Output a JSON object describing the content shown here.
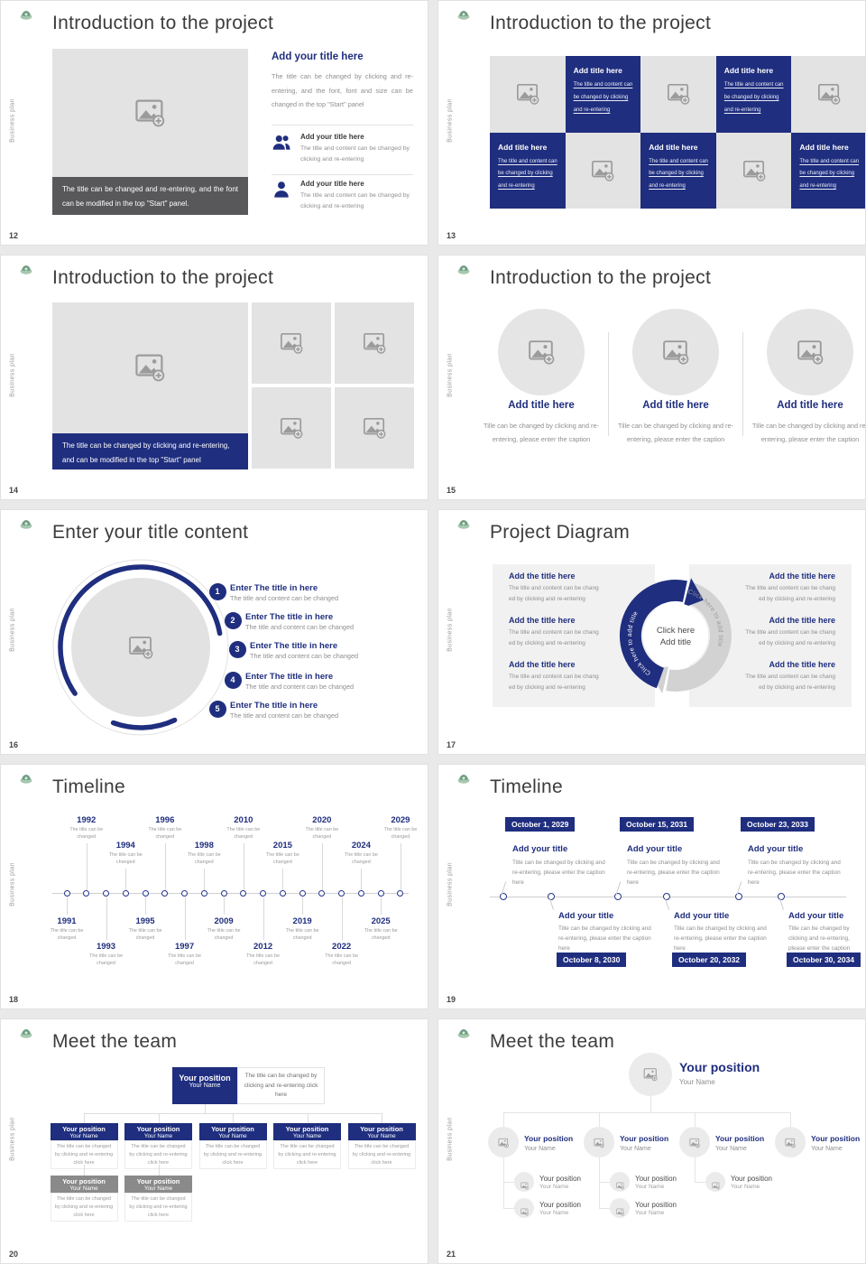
{
  "page": {
    "bg": "#e9e9e9"
  },
  "brand": {
    "sidebar_text": "Business plan",
    "accent": "#1f2e7e",
    "logo_icon": "green-ship-logo"
  },
  "slides": [
    {
      "number": "12",
      "title": "Introduction to the project",
      "type": "image_caption_list",
      "image_caption": "The title can be changed and re-entering, and the font can be modified in the top \"Start\" panel.",
      "heading": "Add your title here",
      "body": "The title can be changed by clicking and re-entering, and the font, font and size can be changed in the top \"Start\" panel",
      "items": [
        {
          "icon": "people-icon",
          "heading": "Add your title here",
          "text": "The title and content can be changed by clicking and re-entering"
        },
        {
          "icon": "person-icon",
          "heading": "Add your title here",
          "text": "The title and content can be changed by clicking and re-entering"
        }
      ]
    },
    {
      "number": "13",
      "title": "Introduction to the project",
      "type": "checkerboard",
      "tiles": [
        {
          "kind": "image"
        },
        {
          "kind": "text",
          "heading": "Add title here",
          "text": "The title and content can be changed by clicking and re-entering"
        },
        {
          "kind": "image"
        },
        {
          "kind": "text",
          "heading": "Add title here",
          "text": "The title and content can be changed by clicking and re-entering"
        },
        {
          "kind": "image"
        },
        {
          "kind": "text",
          "heading": "Add title here",
          "text": "The title and content can be changed by clicking and re-entering"
        },
        {
          "kind": "image"
        },
        {
          "kind": "text",
          "heading": "Add title here",
          "text": "The title and content can be changed by clicking and re-entering"
        },
        {
          "kind": "image"
        },
        {
          "kind": "text",
          "heading": "Add title here",
          "text": "The title and content can be changed by clicking and re-entering"
        }
      ]
    },
    {
      "number": "14",
      "title": "Introduction to the project",
      "type": "image_grid",
      "image_caption": "The title can be changed by clicking and re-entering, and can be modified in the top \"Start\" panel"
    },
    {
      "number": "15",
      "title": "Introduction to the project",
      "type": "three_circles",
      "items": [
        {
          "heading": "Add title here",
          "text": "Tille can be changed by clicking and re-entering, please enter the caption"
        },
        {
          "heading": "Add title here",
          "text": "Tille can be changed by clicking and re-entering, please enter the caption"
        },
        {
          "heading": "Add title here",
          "text": "Tille can be changed by clicking and re-entering, please enter the caption"
        }
      ]
    },
    {
      "number": "16",
      "title": "Enter your title content",
      "type": "numbered_list",
      "items": [
        {
          "num": "1",
          "heading": "Enter The title in here",
          "text": "The title and content can be changed"
        },
        {
          "num": "2",
          "heading": "Enter The title in here",
          "text": "The title and content can be changed"
        },
        {
          "num": "3",
          "heading": "Enter The title in here",
          "text": "The title and content can be changed"
        },
        {
          "num": "4",
          "heading": "Enter The title in here",
          "text": "The title and content can be changed"
        },
        {
          "num": "5",
          "heading": "Enter The title in here",
          "text": "The title and content can be changed"
        }
      ]
    },
    {
      "number": "17",
      "title": "Project Diagram",
      "type": "cycle_diagram",
      "center_line1": "Click here",
      "center_line2": "Add title",
      "arrow_label": "Click here to add title",
      "left_items": [
        {
          "heading": "Add the title here",
          "line1": "The title and content can be chang",
          "line2": "ed by clicking and re-entering"
        },
        {
          "heading": "Add the title here",
          "line1": "The title and content can be chang",
          "line2": "ed by clicking and re-entering"
        },
        {
          "heading": "Add the title here",
          "line1": "The title and content can be chang",
          "line2": "ed by clicking and re-entering"
        }
      ],
      "right_items": [
        {
          "heading": "Add the title here",
          "line1": "The title and content can be chang",
          "line2": "ed by clicking and re-entering"
        },
        {
          "heading": "Add the title here",
          "line1": "The title and content can be chang",
          "line2": "ed by clicking and re-entering"
        },
        {
          "heading": "Add the title here",
          "line1": "The title and content can be chang",
          "line2": "ed by clicking and re-entering"
        }
      ]
    },
    {
      "number": "18",
      "title": "Timeline",
      "type": "timeline_years",
      "caption": "The title can be changed",
      "years": [
        "1991",
        "1992",
        "1993",
        "1994",
        "1995",
        "1996",
        "1997",
        "1998",
        "2009",
        "2010",
        "2012",
        "2015",
        "2019",
        "2020",
        "2022",
        "2024",
        "2025",
        "2029"
      ]
    },
    {
      "number": "19",
      "title": "Timeline",
      "type": "timeline_dates",
      "heading": "Add your title",
      "caption": "Title can be changed by clicking and re-entering, please enter the caption here",
      "dates": [
        "October 1, 2029",
        "October 8, 2030",
        "October 15, 2031",
        "October 20, 2032",
        "October 23, 2033",
        "October 30, 2034"
      ]
    },
    {
      "number": "20",
      "title": "Meet the team",
      "type": "org_chart",
      "position": "Your position",
      "name": "Your Name",
      "note": "The title can be changed by clicking and re-entering click here",
      "caption": "The title can be changed by clicking and re-entering click here",
      "row2_count": 5,
      "row3_count": 2
    },
    {
      "number": "21",
      "title": "Meet the team",
      "type": "team_tree",
      "position": "Your position",
      "name": "Your Name",
      "columns": 4,
      "sub_counts": [
        2,
        2,
        1,
        0
      ]
    }
  ]
}
